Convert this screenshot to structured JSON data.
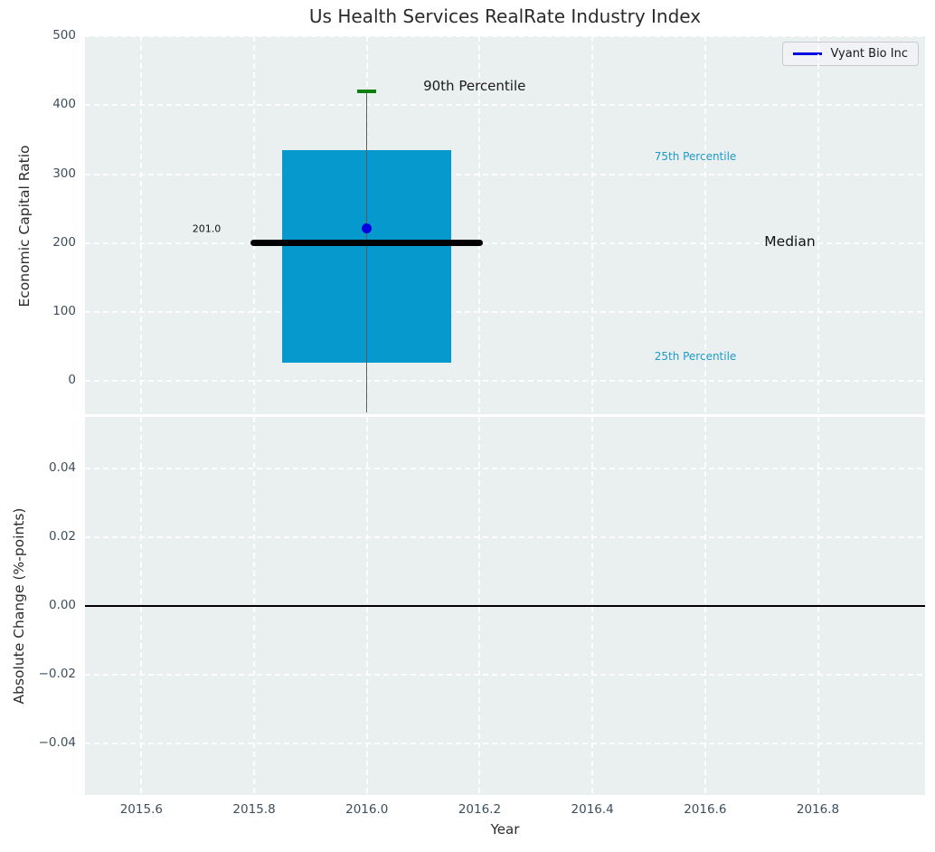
{
  "title": "Us Health Services RealRate Industry Index",
  "legend": {
    "label": "Vyant Bio Inc",
    "line_color": "#0000e0"
  },
  "colors": {
    "axes_bg": "#eaeff0",
    "grid": "#ffffff",
    "box_fill": "#0699ce",
    "median_line": "#000000",
    "p90_cap": "#0c7f0c",
    "whisker": "#5a5a5a",
    "point": "#0000e0",
    "percentile_label": "#1f9ac9",
    "tick_label": "#3d4e5c",
    "axis_label": "#2b2b2b",
    "title_color": "#2b2b2b",
    "zero_line": "#000000"
  },
  "chart_data": [
    {
      "type": "boxplot",
      "title": "Us Health Services RealRate Industry Index",
      "ylabel": "Economic Capital Ratio",
      "legend_entries": [
        "Vyant Bio Inc"
      ],
      "legend_position": "upper right",
      "grid": true,
      "xlim": [
        2015.5,
        2016.99
      ],
      "ylim": [
        -48,
        500
      ],
      "ytick_values": [
        0,
        100,
        200,
        300,
        400,
        500
      ],
      "ytick_labels": [
        "0",
        "100",
        "200",
        "300",
        "400",
        "500"
      ],
      "box": {
        "x_center": 2016.0,
        "box_half_width": 0.15,
        "median_half_width": 0.206,
        "p25": 27,
        "median": 201,
        "p75": 335,
        "p90": 420,
        "whisker_low": -45,
        "median_label": "201.0"
      },
      "point": {
        "series": "Vyant Bio Inc",
        "x": 2016.0,
        "y": 221
      },
      "annotations": [
        {
          "name": "label-90th-percentile",
          "text": "90th Percentile",
          "x": 2016.1,
          "y": 428,
          "size": 15,
          "color": "#1a1a1a",
          "anchor": "left"
        },
        {
          "name": "label-75th-percentile",
          "text": "75th Percentile",
          "x": 2016.51,
          "y": 325,
          "size": 12,
          "color": "#1f9ac9",
          "anchor": "left"
        },
        {
          "name": "label-median",
          "text": "Median",
          "x": 2016.705,
          "y": 202,
          "size": 15.5,
          "color": "#111111",
          "anchor": "left"
        },
        {
          "name": "label-25th-percentile",
          "text": "25th Percentile",
          "x": 2016.51,
          "y": 36,
          "size": 12,
          "color": "#1f9ac9",
          "anchor": "left"
        },
        {
          "name": "label-median-value",
          "text": "201.0",
          "x": 2015.741,
          "y": 221,
          "size": 11,
          "color": "#111111",
          "anchor": "right"
        }
      ]
    },
    {
      "type": "line",
      "ylabel": "Absolute Change (%-points)",
      "xlabel": "Year",
      "grid": true,
      "xlim": [
        2015.5,
        2016.99
      ],
      "ylim": [
        -0.055,
        0.055
      ],
      "ytick_values": [
        0.04,
        0.02,
        0,
        -0.02,
        -0.04
      ],
      "ytick_labels": [
        "0.04",
        "0.02",
        "0.00",
        "−0.02",
        "−0.04"
      ],
      "xtick_values": [
        2015.6,
        2015.8,
        2016.0,
        2016.2,
        2016.4,
        2016.6,
        2016.8
      ],
      "xtick_labels": [
        "2015.6",
        "2015.8",
        "2016.0",
        "2016.2",
        "2016.4",
        "2016.6",
        "2016.8"
      ],
      "zero_line_y": 0.0
    }
  ]
}
